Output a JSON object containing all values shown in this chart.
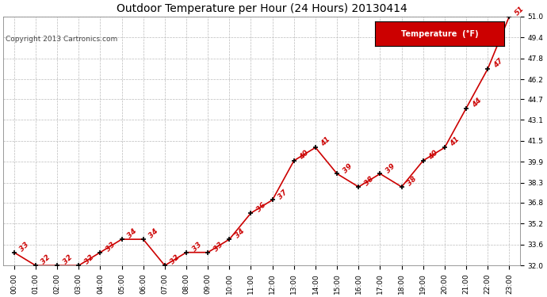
{
  "title": "Outdoor Temperature per Hour (24 Hours) 20130414",
  "copyright": "Copyright 2013 Cartronics.com",
  "legend_label": "Temperature  (°F)",
  "hours": [
    "00:00",
    "01:00",
    "02:00",
    "03:00",
    "04:00",
    "05:00",
    "06:00",
    "07:00",
    "08:00",
    "09:00",
    "10:00",
    "11:00",
    "12:00",
    "13:00",
    "14:00",
    "15:00",
    "16:00",
    "17:00",
    "18:00",
    "19:00",
    "20:00",
    "21:00",
    "22:00",
    "23:00"
  ],
  "temps": [
    33,
    32,
    32,
    32,
    33,
    34,
    34,
    32,
    33,
    33,
    34,
    36,
    37,
    40,
    41,
    39,
    38,
    39,
    38,
    40,
    41,
    44,
    47,
    51
  ],
  "labels": [
    "33",
    "32",
    "32",
    "32",
    "33",
    "34",
    "34",
    "32",
    "33",
    "33",
    "34",
    "36",
    "37",
    "40",
    "41",
    "39",
    "38",
    "39",
    "38",
    "40",
    "41",
    "44",
    "47",
    "51"
  ],
  "ylim_min": 32.0,
  "ylim_max": 51.0,
  "yticks": [
    32.0,
    33.6,
    35.2,
    36.8,
    38.3,
    39.9,
    41.5,
    43.1,
    44.7,
    46.2,
    47.8,
    49.4,
    51.0
  ],
  "ytick_labels": [
    "32.0",
    "33.6",
    "35.2",
    "36.8",
    "38.3",
    "39.9",
    "41.5",
    "43.1",
    "44.7",
    "46.2",
    "47.8",
    "49.4",
    "51.0"
  ],
  "line_color": "#cc0000",
  "marker_color": "#000000",
  "bg_color": "#ffffff",
  "grid_color": "#bbbbbb",
  "label_color": "#cc0000",
  "title_color": "#000000",
  "legend_bg": "#cc0000",
  "legend_text_color": "#ffffff",
  "title_fontsize": 10,
  "copyright_fontsize": 6.5,
  "tick_fontsize": 6.5,
  "label_fontsize": 6.5
}
